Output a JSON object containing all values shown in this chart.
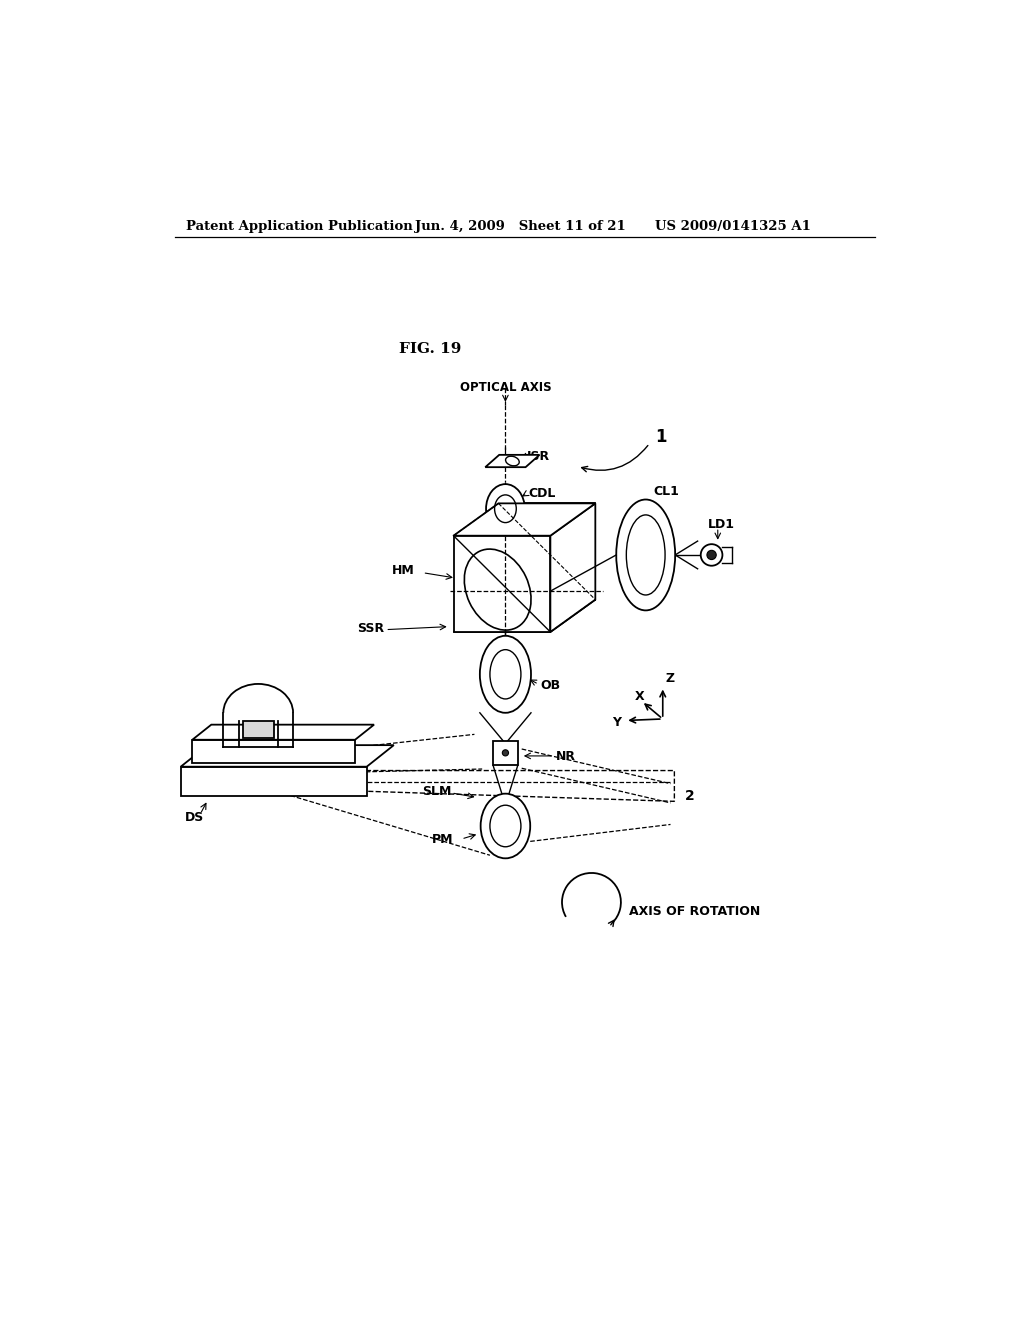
{
  "bg_color": "#ffffff",
  "line_color": "#000000",
  "header_left": "Patent Application Publication",
  "header_mid": "Jun. 4, 2009   Sheet 11 of 21",
  "header_right": "US 2009/0141325 A1",
  "fig_label": "FIG. 19",
  "labels": {
    "OPTICAL_AXIS": "OPTICAL AXIS",
    "ISR": "ISR",
    "CDL": "CDL",
    "CL1": "CL1",
    "LD1": "LD1",
    "HM": "HM",
    "SSR": "SSR",
    "OB": "OB",
    "NR": "NR",
    "SLM": "SLM",
    "PM": "PM",
    "DS": "DS",
    "one": "1",
    "two": "2",
    "X": "X",
    "Y": "Y",
    "Z": "Z",
    "AXIS_OF_ROTATION": "AXIS OF ROTATION"
  }
}
